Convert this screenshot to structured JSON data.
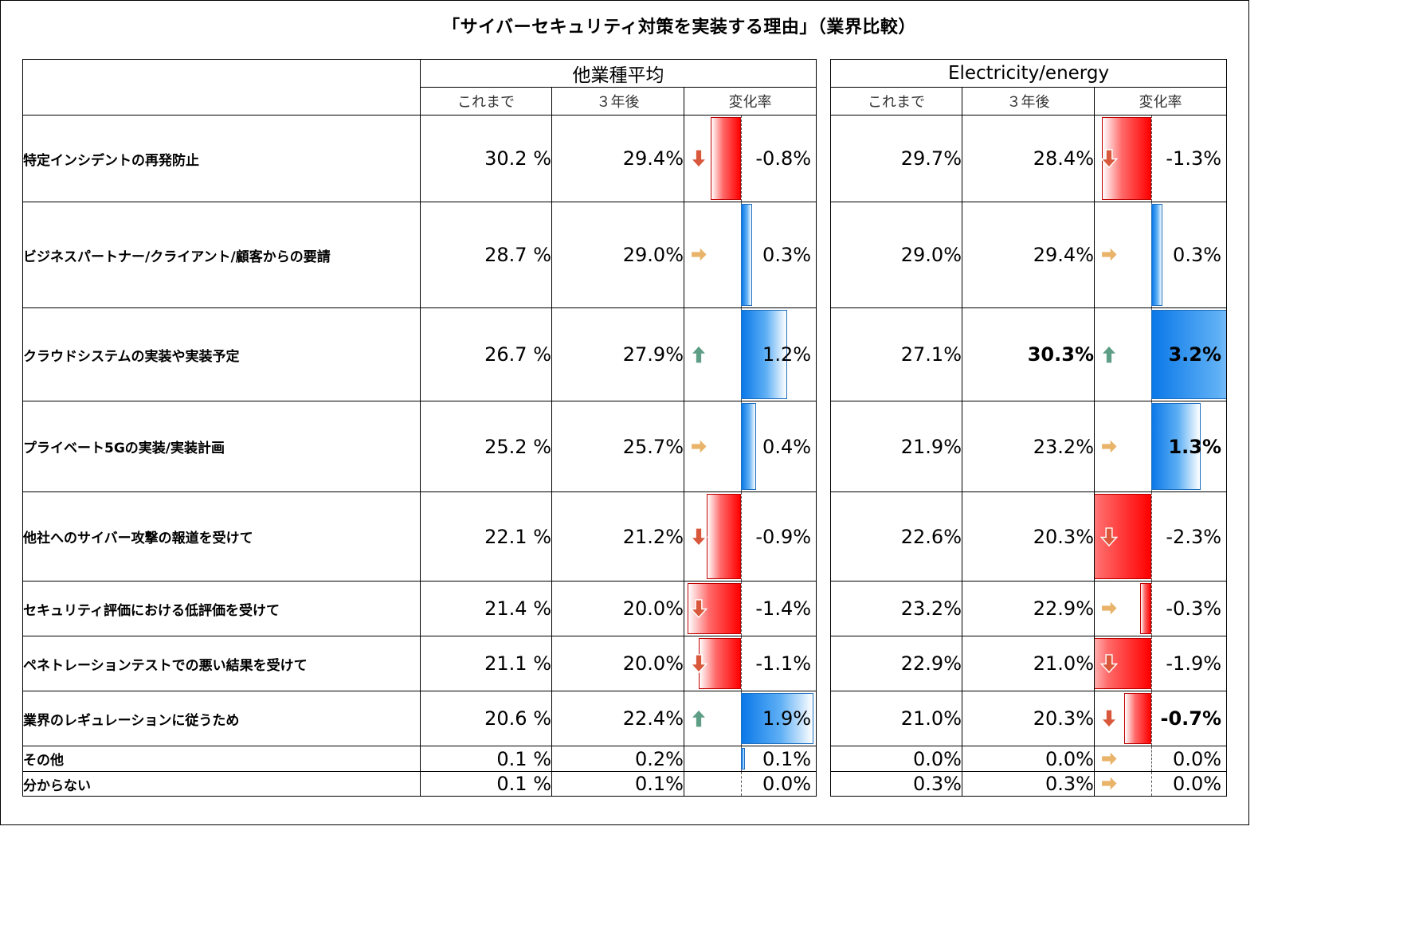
{
  "title": "「サイバーセキュリティ対策を実装する理由」（業界比較）",
  "groups": [
    "他業種平均",
    "Electricity/energy"
  ],
  "columns": [
    "これまで",
    "３年後",
    "変化率"
  ],
  "colors": {
    "negative": "#ff0000",
    "positive": "#0a78e8",
    "arrow_down": "#d9573a",
    "arrow_right": "#e9b36a",
    "arrow_up": "#5e9e86"
  },
  "chart_data": {
    "type": "table",
    "title": "「サイバーセキュリティ対策を実装する理由」（業界比較）",
    "groups": [
      "他業種平均",
      "Electricity/energy"
    ],
    "columns": [
      "これまで",
      "３年後",
      "変化率"
    ],
    "rows": [
      {
        "label": "特定インシデントの再発防止",
        "other": {
          "before": "30.2 %",
          "after": "29.4%",
          "change": "-0.8%",
          "change_value": -0.8,
          "arrow": "down"
        },
        "energy": {
          "before": "29.7%",
          "after": "28.4%",
          "change": "-1.3%",
          "change_value": -1.3,
          "arrow": "down"
        }
      },
      {
        "label": "ビジネスパートナー/クライアント/顧客からの要請",
        "other": {
          "before": "28.7 %",
          "after": "29.0%",
          "change": "0.3%",
          "change_value": 0.3,
          "arrow": "right"
        },
        "energy": {
          "before": "29.0%",
          "after": "29.4%",
          "change": "0.3%",
          "change_value": 0.3,
          "arrow": "right"
        }
      },
      {
        "label": "クラウドシステムの実装や実装予定",
        "other": {
          "before": "26.7 %",
          "after": "27.9%",
          "change": "1.2%",
          "change_value": 1.2,
          "arrow": "up"
        },
        "energy": {
          "before": "27.1%",
          "after": "30.3%",
          "change": "3.2%",
          "change_value": 3.2,
          "arrow": "up",
          "bold_after": true,
          "bold_change": true
        }
      },
      {
        "label": "プライベート5Gの実装/実装計画",
        "other": {
          "before": "25.2 %",
          "after": "25.7%",
          "change": "0.4%",
          "change_value": 0.4,
          "arrow": "right"
        },
        "energy": {
          "before": "21.9%",
          "after": "23.2%",
          "change": "1.3%",
          "change_value": 1.3,
          "arrow": "right",
          "bold_change": true
        }
      },
      {
        "label": "他社へのサイバー攻撃の報道を受けて",
        "other": {
          "before": "22.1 %",
          "after": "21.2%",
          "change": "-0.9%",
          "change_value": -0.9,
          "arrow": "down"
        },
        "energy": {
          "before": "22.6%",
          "after": "20.3%",
          "change": "-2.3%",
          "change_value": -2.3,
          "arrow": "down"
        }
      },
      {
        "label": "セキュリティ評価における低評価を受けて",
        "other": {
          "before": "21.4 %",
          "after": "20.0%",
          "change": "-1.4%",
          "change_value": -1.4,
          "arrow": "down"
        },
        "energy": {
          "before": "23.2%",
          "after": "22.9%",
          "change": "-0.3%",
          "change_value": -0.3,
          "arrow": "right"
        }
      },
      {
        "label": "ペネトレーションテストでの悪い結果を受けて",
        "other": {
          "before": "21.1 %",
          "after": "20.0%",
          "change": "-1.1%",
          "change_value": -1.1,
          "arrow": "down"
        },
        "energy": {
          "before": "22.9%",
          "after": "21.0%",
          "change": "-1.9%",
          "change_value": -1.9,
          "arrow": "down"
        }
      },
      {
        "label": "業界のレギュレーションに従うため",
        "other": {
          "before": "20.6 %",
          "after": "22.4%",
          "change": "1.9%",
          "change_value": 1.9,
          "arrow": "up"
        },
        "energy": {
          "before": "21.0%",
          "after": "20.3%",
          "change": "-0.7%",
          "change_value": -0.7,
          "arrow": "down",
          "bold_change": true
        }
      },
      {
        "label": "その他",
        "other": {
          "before": "0.1 %",
          "after": "0.2%",
          "change": "0.1%",
          "change_value": 0.1,
          "arrow": "none"
        },
        "energy": {
          "before": "0.0%",
          "after": "0.0%",
          "change": "0.0%",
          "change_value": 0.0,
          "arrow": "right"
        }
      },
      {
        "label": "分からない",
        "other": {
          "before": "0.1 %",
          "after": "0.1%",
          "change": "0.0%",
          "change_value": 0.0,
          "arrow": "none"
        },
        "energy": {
          "before": "0.3%",
          "after": "0.3%",
          "change": "0.0%",
          "change_value": 0.0,
          "arrow": "right"
        }
      }
    ]
  }
}
